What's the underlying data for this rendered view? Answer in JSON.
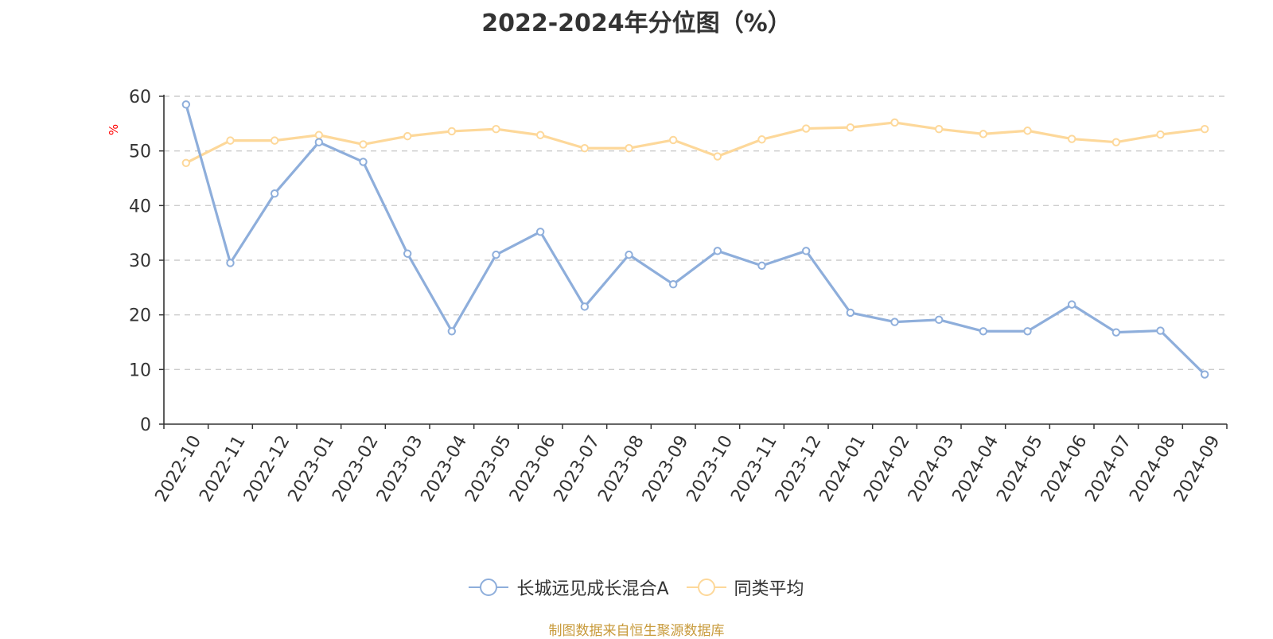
{
  "chart_data": {
    "type": "line",
    "title": "2022-2024年分位图（%）",
    "ylabel": "%",
    "ylim": [
      0,
      60
    ],
    "yticks": [
      0,
      10,
      20,
      30,
      40,
      50,
      60
    ],
    "grid": true,
    "legend_position": "bottom-center",
    "categories": [
      "2022-10",
      "2022-11",
      "2022-12",
      "2023-01",
      "2023-02",
      "2023-03",
      "2023-04",
      "2023-05",
      "2023-06",
      "2023-07",
      "2023-08",
      "2023-09",
      "2023-10",
      "2023-11",
      "2023-12",
      "2024-01",
      "2024-02",
      "2024-03",
      "2024-04",
      "2024-05",
      "2024-06",
      "2024-07",
      "2024-08",
      "2024-09"
    ],
    "series": [
      {
        "name": "长城远见成长混合A",
        "color": "#8eaedb",
        "values": [
          58.5,
          29.5,
          42.2,
          51.6,
          48.0,
          31.2,
          17.0,
          31.0,
          35.2,
          21.5,
          31.0,
          25.6,
          31.7,
          29.0,
          31.7,
          20.4,
          18.7,
          19.1,
          17.0,
          17.0,
          21.9,
          16.8,
          17.1,
          9.1
        ]
      },
      {
        "name": "同类平均",
        "color": "#fdd89a",
        "values": [
          47.8,
          51.9,
          51.9,
          52.9,
          51.2,
          52.7,
          53.6,
          54.0,
          52.9,
          50.5,
          50.5,
          52.0,
          49.0,
          52.1,
          54.1,
          54.3,
          55.2,
          54.0,
          53.1,
          53.7,
          52.2,
          51.6,
          53.0,
          54.0
        ]
      }
    ]
  },
  "source_note": "制图数据来自恒生聚源数据库",
  "colors": {
    "axis": "#333333",
    "grid": "#cccccc",
    "ylabel": "#ff0000",
    "title": "#333333",
    "source": "#c89b3c"
  }
}
